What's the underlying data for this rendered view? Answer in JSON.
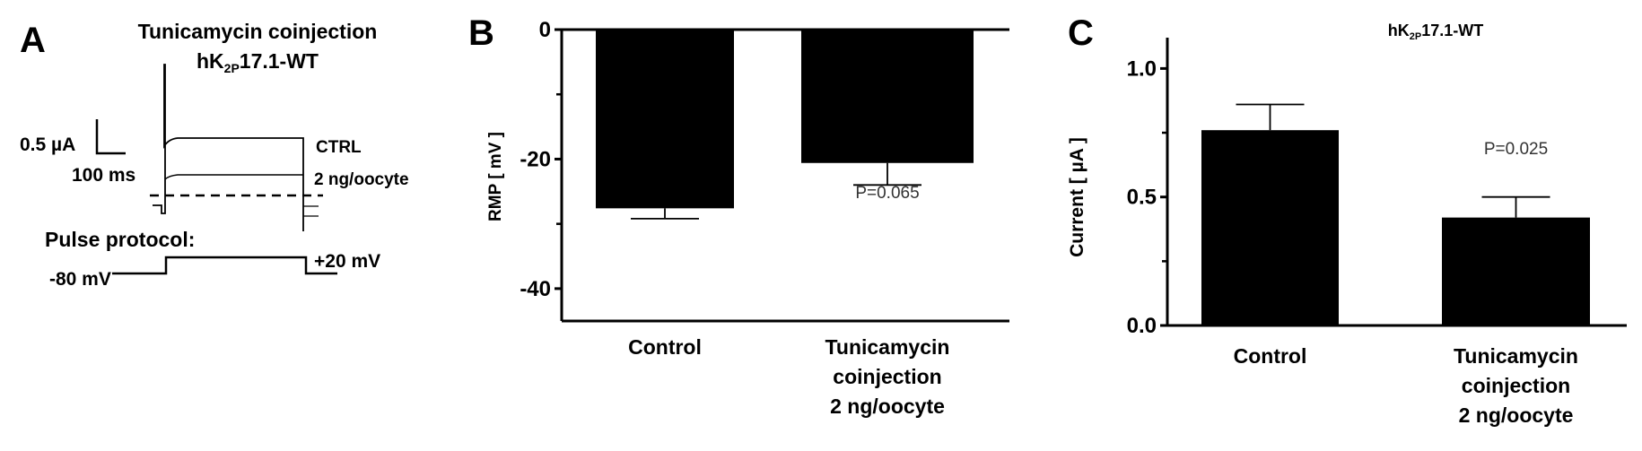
{
  "panel_a": {
    "letter": "A",
    "title_line1": "Tunicamycin coinjection",
    "title_line2_prefix": "hK",
    "title_line2_sub": "2P",
    "title_line2_suffix": "17.1-WT",
    "scale_current": "0.5 µA",
    "scale_time": "100 ms",
    "trace_labels": [
      "CTRL",
      "2 ng/oocyte"
    ],
    "protocol_label": "Pulse protocol:",
    "holding_potential": "-80 mV",
    "test_potential": "+20 mV"
  },
  "chart_data": [
    {
      "panel": "B",
      "type": "bar",
      "categories": [
        "Control",
        "Tunicamycin coinjection 2 ng/oocyte"
      ],
      "category_lines": [
        [
          "Control"
        ],
        [
          "Tunicamycin",
          "coinjection",
          "2 ng/oocyte"
        ]
      ],
      "values": [
        -27.6,
        -20.6
      ],
      "error": [
        1.6,
        3.4
      ],
      "ylabel": "RMP [ mV ]",
      "ylim": [
        -45,
        0
      ],
      "yticks": [
        0,
        -20,
        -40
      ],
      "yticks_labels": [
        "0",
        "-20",
        "-40"
      ],
      "minor_ticks": [
        -10,
        -30
      ],
      "annotations": [
        "",
        "P=0.065"
      ],
      "bar_color": "#000000",
      "grid": false
    },
    {
      "panel": "C",
      "type": "bar",
      "title_prefix": "hK",
      "title_sub": "2P",
      "title_suffix": "17.1-WT",
      "categories": [
        "Control",
        "Tunicamycin coinjection 2 ng/oocyte"
      ],
      "category_lines": [
        [
          "Control"
        ],
        [
          "Tunicamycin",
          "coinjection",
          "2 ng/oocyte"
        ]
      ],
      "values": [
        0.76,
        0.42
      ],
      "error": [
        0.1,
        0.08
      ],
      "ylabel": "Current  [ µA ]",
      "ylim": [
        0,
        1.12
      ],
      "yticks": [
        0,
        0.5,
        1.0
      ],
      "yticks_labels": [
        "0.0",
        "0.5",
        "1.0"
      ],
      "minor_ticks": [
        0.25,
        0.75
      ],
      "annotations": [
        "",
        "P=0.025"
      ],
      "bar_color": "#000000",
      "grid": false
    }
  ],
  "panel_letters": [
    "A",
    "B",
    "C"
  ]
}
